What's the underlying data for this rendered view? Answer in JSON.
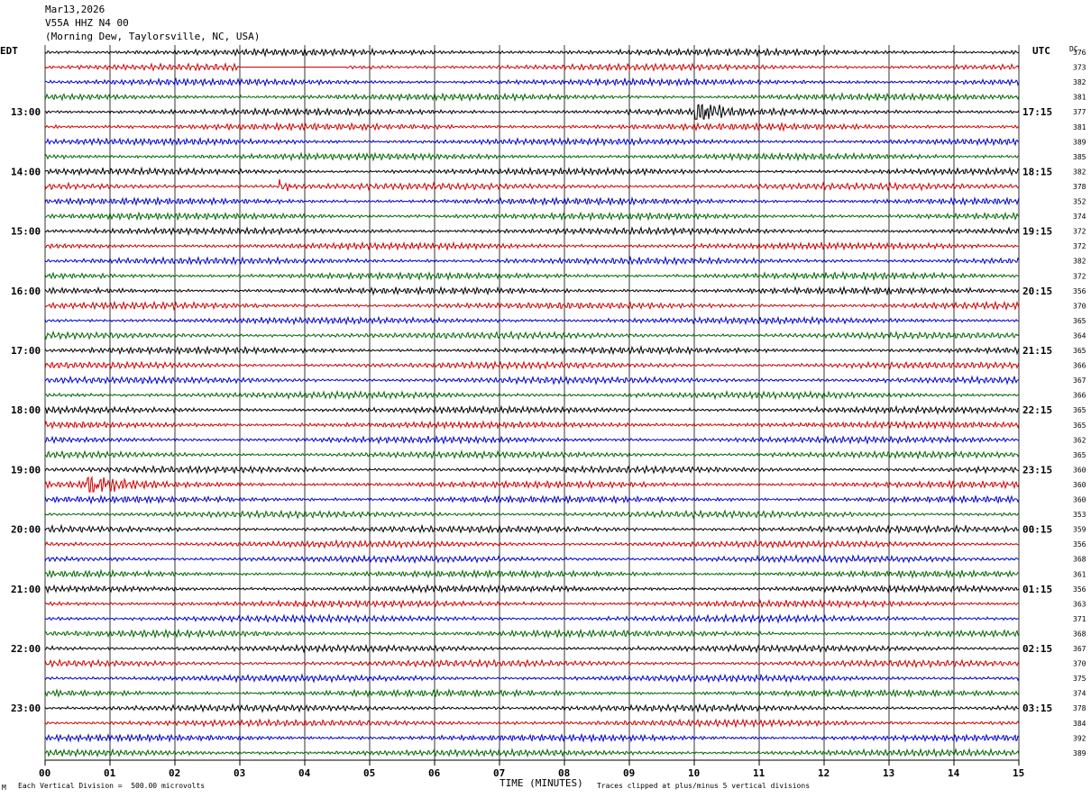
{
  "header": {
    "date": "Mar13,2026",
    "station": "V55A HHZ N4 00",
    "location": "(Morning Dew, Taylorsville, NC, USA)"
  },
  "left_zone_label": "EDT",
  "right_zone_label": "UTC",
  "dc_label": "DC",
  "footer": {
    "scale_note": "Each Vertical Division =  500.00 microvolts",
    "clip_note": "Traces clipped at plus/minus 5 vertical divisions",
    "mark": "M"
  },
  "chart_data": {
    "type": "line",
    "title": "",
    "xlabel": "TIME (MINUTES)",
    "ylabel": "",
    "xlim": [
      0,
      15
    ],
    "x_ticks": [
      "00",
      "01",
      "02",
      "03",
      "04",
      "05",
      "06",
      "07",
      "08",
      "09",
      "10",
      "11",
      "12",
      "13",
      "14",
      "15"
    ],
    "trace_colors": [
      "#000000",
      "#cc0000",
      "#0000cc",
      "#006600"
    ],
    "trace_count": 48,
    "left_time_labels": [
      {
        "trace": 4,
        "text": "13:00"
      },
      {
        "trace": 8,
        "text": "14:00"
      },
      {
        "trace": 12,
        "text": "15:00"
      },
      {
        "trace": 16,
        "text": "16:00"
      },
      {
        "trace": 20,
        "text": "17:00"
      },
      {
        "trace": 24,
        "text": "18:00"
      },
      {
        "trace": 28,
        "text": "19:00"
      },
      {
        "trace": 32,
        "text": "20:00"
      },
      {
        "trace": 36,
        "text": "21:00"
      },
      {
        "trace": 40,
        "text": "22:00"
      },
      {
        "trace": 44,
        "text": "23:00"
      }
    ],
    "right_time_labels": [
      {
        "trace": 4,
        "text": "17:15"
      },
      {
        "trace": 8,
        "text": "18:15"
      },
      {
        "trace": 12,
        "text": "19:15"
      },
      {
        "trace": 16,
        "text": "20:15"
      },
      {
        "trace": 20,
        "text": "21:15"
      },
      {
        "trace": 24,
        "text": "22:15"
      },
      {
        "trace": 28,
        "text": "23:15"
      },
      {
        "trace": 32,
        "text": "00:15"
      },
      {
        "trace": 36,
        "text": "01:15"
      },
      {
        "trace": 40,
        "text": "02:15"
      },
      {
        "trace": 44,
        "text": "03:15"
      }
    ],
    "dc_offsets": [
      376,
      373,
      382,
      381,
      377,
      381,
      389,
      385,
      382,
      378,
      352,
      374,
      372,
      372,
      382,
      372,
      356,
      370,
      365,
      364,
      365,
      366,
      367,
      366,
      365,
      365,
      362,
      365,
      360,
      360,
      360,
      353,
      359,
      356,
      368,
      361,
      356,
      363,
      371,
      368,
      367,
      370,
      375,
      374,
      378,
      384,
      392,
      389
    ],
    "events": [
      {
        "trace": 1,
        "type": "flat",
        "x_start": 3.0,
        "x_end": 4.65
      },
      {
        "trace": 4,
        "type": "burst",
        "x_start": 10.0,
        "x_end": 10.8,
        "amplitude": 2.2
      },
      {
        "trace": 29,
        "type": "burst",
        "x_start": 0.6,
        "x_end": 1.8,
        "amplitude": 1.8
      },
      {
        "trace": 9,
        "type": "burst",
        "x_start": 3.6,
        "x_end": 4.0,
        "amplitude": 1.3
      }
    ]
  }
}
